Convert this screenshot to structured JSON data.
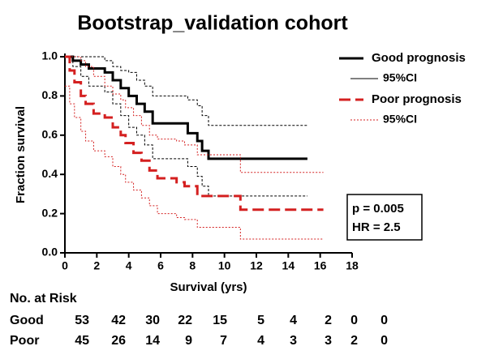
{
  "chart_data": {
    "type": "kaplan-meier",
    "title": "Bootstrap_validation cohort",
    "xlabel": "Survival (yrs)",
    "ylabel": "Fraction survival",
    "xlim": [
      0,
      18
    ],
    "xticks": [
      0,
      2,
      4,
      6,
      8,
      10,
      12,
      14,
      16,
      18
    ],
    "ylim": [
      0,
      1
    ],
    "yticks": [
      {
        "value": 0,
        "label": "0.0"
      },
      0.2,
      0.4,
      0.6,
      0.8,
      {
        "value": 1,
        "label": "1.0"
      }
    ],
    "series": [
      {
        "name": "Good prognosis",
        "color": "#000000",
        "style": "solid",
        "ci_name": "95%CI",
        "ci_style": "dashed-thin",
        "x": [
          0,
          0.5,
          1,
          1.5,
          2.5,
          3,
          3.5,
          4,
          4.5,
          5,
          5.5,
          7.7,
          8.3,
          8.6,
          9,
          15.2
        ],
        "values": [
          1,
          0.98,
          0.96,
          0.94,
          0.92,
          0.88,
          0.84,
          0.8,
          0.76,
          0.72,
          0.66,
          0.61,
          0.57,
          0.52,
          0.48,
          0.48
        ],
        "ci_upper": [
          1,
          1,
          1,
          1,
          0.98,
          0.95,
          0.93,
          0.92,
          0.88,
          0.85,
          0.8,
          0.78,
          0.75,
          0.7,
          0.65,
          0.65
        ],
        "ci_lower": [
          1,
          0.95,
          0.9,
          0.85,
          0.82,
          0.76,
          0.7,
          0.64,
          0.6,
          0.55,
          0.48,
          0.44,
          0.39,
          0.34,
          0.29,
          0.29
        ]
      },
      {
        "name": "Poor prognosis",
        "color": "#d42020",
        "style": "dashed",
        "ci_name": "95%CI",
        "ci_style": "dotted-thin",
        "x": [
          0,
          0.3,
          0.6,
          1,
          1.3,
          1.8,
          2.5,
          3,
          3.5,
          3.8,
          4.3,
          4.8,
          5.3,
          5.8,
          7,
          7.5,
          8.3,
          11,
          16.2
        ],
        "values": [
          1,
          0.93,
          0.87,
          0.8,
          0.76,
          0.71,
          0.69,
          0.64,
          0.6,
          0.56,
          0.51,
          0.47,
          0.42,
          0.38,
          0.36,
          0.34,
          0.29,
          0.22,
          0.22
        ],
        "ci_upper": [
          1,
          1,
          1,
          0.98,
          0.95,
          0.9,
          0.85,
          0.81,
          0.78,
          0.74,
          0.7,
          0.65,
          0.6,
          0.58,
          0.57,
          0.55,
          0.5,
          0.41,
          0.41
        ],
        "ci_lower": [
          0.85,
          0.76,
          0.69,
          0.62,
          0.57,
          0.52,
          0.49,
          0.44,
          0.4,
          0.36,
          0.32,
          0.28,
          0.24,
          0.2,
          0.18,
          0.17,
          0.13,
          0.07,
          0.07
        ]
      }
    ],
    "annotations": [
      "p = 0.005",
      "HR = 2.5"
    ],
    "risk_table": {
      "title": "No. at Risk",
      "rows": [
        {
          "label": "Good",
          "values": [
            53,
            42,
            30,
            22,
            15,
            5,
            4,
            2,
            0,
            0
          ]
        },
        {
          "label": "Poor",
          "values": [
            45,
            26,
            14,
            9,
            7,
            4,
            3,
            3,
            2,
            0
          ]
        }
      ]
    }
  }
}
